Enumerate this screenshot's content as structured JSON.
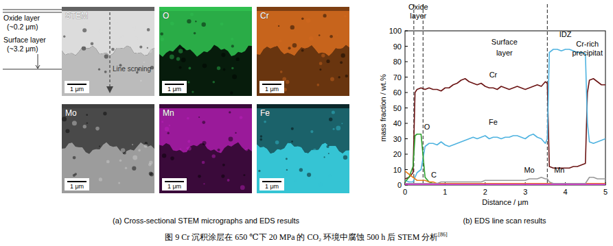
{
  "figure": {
    "caption": "图 9 Cr 沉积涂层在 650 ℃下 20 MPa 的 CO₂ 环境中腐蚀 500 h 后 STEM 分析",
    "reference": "[86]"
  },
  "panel_a": {
    "caption": "(a) Cross-sectional STEM micrographs and EDS results",
    "layers": [
      {
        "label": "Oxide layer",
        "thickness": "(~0.2 μm)"
      },
      {
        "label": "Surface layer",
        "thickness": "(~3.2 μm)"
      }
    ],
    "line_scan_label": "Line scnning",
    "scale_bar": "1 μm",
    "maps": [
      {
        "title": "STEM",
        "color": "#dcdcdc"
      },
      {
        "title": "O",
        "color": "#2fbf4f"
      },
      {
        "title": "Cr",
        "color": "#d2691e"
      },
      {
        "title": "Mo",
        "color": "#d0d0d0"
      },
      {
        "title": "Mn",
        "color": "#c020c0"
      },
      {
        "title": "Fe",
        "color": "#35c4d4"
      }
    ]
  },
  "chart_data": {
    "type": "line",
    "caption": "(b) EDS line scan results",
    "xlabel": "Distance / μm",
    "ylabel": "mass fraction / wt.%",
    "x": [
      0,
      0.1,
      0.2,
      0.25,
      0.3,
      0.4,
      0.5,
      0.6,
      0.7,
      0.8,
      0.9,
      1,
      1.1,
      1.2,
      1.3,
      1.4,
      1.5,
      1.6,
      1.7,
      1.8,
      1.9,
      2,
      2.1,
      2.2,
      2.3,
      2.4,
      2.5,
      2.6,
      2.7,
      2.8,
      2.9,
      3,
      3.1,
      3.2,
      3.3,
      3.4,
      3.5,
      3.55,
      3.6,
      3.7,
      3.8,
      3.9,
      4,
      4.1,
      4.2,
      4.3,
      4.4,
      4.5,
      4.55,
      4.6,
      4.7,
      4.8,
      4.9,
      5
    ],
    "xlim": [
      0,
      5
    ],
    "xticks": [
      0,
      1,
      2,
      3,
      4,
      5
    ],
    "ylim": [
      0,
      100
    ],
    "yticks": [
      0,
      10,
      20,
      30,
      40,
      50,
      60,
      70,
      80,
      90,
      100
    ],
    "reference_lines": [
      0.22,
      0.45,
      3.55
    ],
    "annotations": [
      {
        "text": "Oxide",
        "x": 0.33,
        "y": 114
      },
      {
        "text": "layer",
        "x": 0.33,
        "y": 108
      },
      {
        "text": "Surface",
        "x": 2.48,
        "y": 91
      },
      {
        "text": "layer",
        "x": 2.48,
        "y": 84
      },
      {
        "text": "IDZ",
        "x": 4.0,
        "y": 96
      },
      {
        "text": "Cr-rich",
        "x": 4.55,
        "y": 90
      },
      {
        "text": "precipitat",
        "x": 4.55,
        "y": 84
      }
    ],
    "series": [
      {
        "name": "Cr",
        "color": "#6b1414",
        "label_x": 2.2,
        "label_y": 70,
        "values": [
          4,
          5,
          8,
          60,
          62,
          63,
          62,
          63,
          62,
          62,
          61,
          63,
          63,
          65,
          66,
          68,
          69,
          67,
          66,
          65,
          66,
          64,
          63,
          63,
          62,
          64,
          63,
          62,
          63,
          64,
          63,
          62,
          63,
          64,
          65,
          64,
          67,
          66,
          12,
          11,
          11,
          11,
          11,
          11,
          12,
          12,
          13,
          14,
          60,
          68,
          69,
          67,
          65,
          65
        ]
      },
      {
        "name": "Fe",
        "color": "#4fb3e0",
        "label_x": 2.2,
        "label_y": 39,
        "values": [
          3,
          2,
          2,
          5,
          8,
          10,
          25,
          27,
          27,
          26,
          28,
          26,
          25,
          26,
          27,
          28,
          29,
          30,
          31,
          30,
          31,
          32,
          30,
          31,
          31,
          30,
          31,
          31,
          32,
          32,
          31,
          30,
          32,
          33,
          31,
          30,
          27,
          30,
          86,
          88,
          88,
          87,
          88,
          88,
          87,
          86,
          86,
          85,
          40,
          28,
          27,
          28,
          29,
          30
        ]
      },
      {
        "name": "O",
        "color": "#2ca02c",
        "label_x": 0.55,
        "label_y": 36,
        "values": [
          2,
          5,
          12,
          32,
          33,
          33,
          5,
          2,
          1,
          1,
          1,
          1,
          1,
          1,
          1,
          1,
          1,
          1,
          1,
          1,
          1,
          1,
          1,
          1,
          1,
          1,
          1,
          1,
          1,
          1,
          1,
          1,
          1,
          1,
          1,
          1,
          1,
          1,
          1,
          1,
          1,
          1,
          1,
          1,
          1,
          1,
          1,
          1,
          1,
          1,
          1,
          1,
          1,
          1
        ]
      },
      {
        "name": "C",
        "color": "#e8801a",
        "label_x": 0.72,
        "label_y": 5,
        "values": [
          9,
          7,
          5,
          4,
          3,
          3,
          3,
          2,
          2,
          1,
          1,
          1,
          1,
          1,
          1,
          1,
          1,
          1,
          1,
          1,
          1,
          1,
          1,
          1,
          1,
          1,
          1,
          1,
          1,
          1,
          1,
          1,
          1,
          1,
          1,
          1,
          1,
          1,
          1,
          1,
          1,
          1,
          1,
          1,
          1,
          1,
          1,
          1,
          1,
          1,
          1,
          1,
          1,
          1
        ]
      },
      {
        "name": "Mo",
        "color": "#999999",
        "label_x": 3.1,
        "label_y": 8,
        "values": [
          1,
          1,
          1,
          1,
          1,
          1,
          1,
          1,
          1,
          1,
          2,
          2,
          2,
          2,
          2,
          2,
          2,
          2,
          2,
          2,
          2,
          3,
          3,
          3,
          3,
          3,
          3,
          3,
          3,
          3,
          3,
          3,
          4,
          4,
          4,
          5,
          4,
          4,
          2,
          1,
          1,
          1,
          1,
          1,
          1,
          1,
          1,
          1,
          3,
          5,
          5,
          4,
          4,
          4
        ]
      },
      {
        "name": "Mn",
        "color": "#d63ccf",
        "label_x": 3.85,
        "label_y": 8,
        "values": [
          0.5,
          0.5,
          0.5,
          0.5,
          0.5,
          0.5,
          0.5,
          0.5,
          0.5,
          0.5,
          0.5,
          0.5,
          0.5,
          0.5,
          0.5,
          0.5,
          0.5,
          0.5,
          0.5,
          0.5,
          0.5,
          0.5,
          0.5,
          0.5,
          0.5,
          0.5,
          0.5,
          0.5,
          0.5,
          0.5,
          0.5,
          0.5,
          0.5,
          0.5,
          0.5,
          0.5,
          0.5,
          0.5,
          0.5,
          0.5,
          0.5,
          0.5,
          0.5,
          0.5,
          0.5,
          0.5,
          0.5,
          0.5,
          0.5,
          0.5,
          0.5,
          0.5,
          0.5,
          0.5
        ]
      }
    ]
  }
}
